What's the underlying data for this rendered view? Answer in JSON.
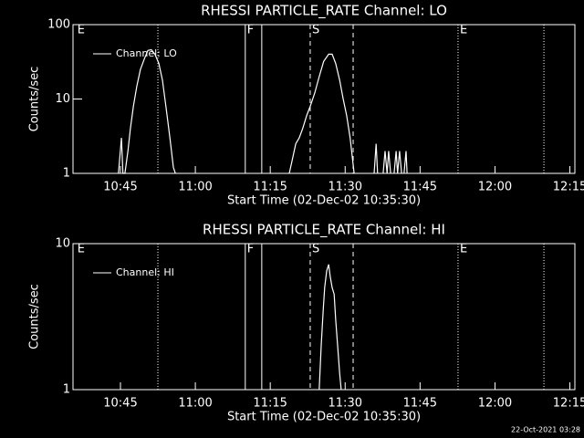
{
  "chart_data": [
    {
      "type": "line",
      "title": "RHESSI PARTICLE_RATE Channel: LO",
      "x_label": "Start Time (02-Dec-02 10:35:30)",
      "y_label": "Counts/sec",
      "log_y": true,
      "legend": "upper left",
      "xlim": [
        635.5,
        736
      ],
      "ylim": [
        1,
        100
      ],
      "yticks": [
        1,
        10,
        100
      ],
      "xticks": [
        {
          "value": 645,
          "label": "10:45"
        },
        {
          "value": 660,
          "label": "11:00"
        },
        {
          "value": 675,
          "label": "11:15"
        },
        {
          "value": 690,
          "label": "11:30"
        },
        {
          "value": 705,
          "label": "11:45"
        },
        {
          "value": 720,
          "label": "12:00"
        },
        {
          "value": 735,
          "label": "12:15"
        }
      ],
      "markers": [
        {
          "x": 636,
          "style": "none",
          "label": "E"
        },
        {
          "x": 652.5,
          "style": "dotted"
        },
        {
          "x": 670.0,
          "style": "solid",
          "label": "F"
        },
        {
          "x": 673.3,
          "style": "solid"
        },
        {
          "x": 683.0,
          "style": "dashed",
          "label": "S"
        },
        {
          "x": 691.6,
          "style": "dashed"
        },
        {
          "x": 712.6,
          "style": "dotted",
          "label": "E"
        },
        {
          "x": 729.8,
          "style": "dotted"
        }
      ],
      "series": [
        {
          "name": "Channel: LO",
          "color": "#ffffff",
          "x": [
            644.6,
            645.2,
            645.5,
            645.9,
            646.5,
            647.0,
            647.6,
            648.3,
            649.0,
            649.8,
            650.5,
            651.2,
            651.9,
            652.7,
            653.4,
            654.1,
            654.9,
            655.6,
            656.0,
            660,
            678.8,
            679.4,
            680.1,
            680.8,
            681.5,
            682.3,
            683.0,
            683.9,
            684.8,
            685.7,
            686.7,
            687.4,
            688.1,
            688.9,
            689.6,
            690.3,
            691.0,
            691.8,
            693,
            695.8,
            696.2,
            696.5,
            697,
            697.6,
            698.0,
            698.4,
            698.7,
            699.1,
            699.5,
            699.8,
            700.2,
            700.5,
            700.9,
            701.3,
            701.6,
            701.8,
            702.2,
            702.4
          ],
          "values": [
            1,
            3,
            1,
            1,
            2,
            4,
            8,
            15,
            25,
            35,
            45,
            46,
            40,
            30,
            18,
            8,
            3,
            1.2,
            1,
            null,
            1,
            1.5,
            2.5,
            3,
            4,
            6,
            8,
            12,
            20,
            32,
            40,
            40,
            30,
            18,
            10,
            6,
            3,
            1,
            null,
            1,
            2.5,
            1,
            null,
            1,
            2,
            1,
            2,
            1,
            null,
            1,
            2,
            1,
            2,
            1,
            null,
            1,
            2,
            1
          ]
        }
      ]
    },
    {
      "type": "line",
      "title": "RHESSI PARTICLE_RATE Channel: HI",
      "x_label": "Start Time (02-Dec-02 10:35:30)",
      "y_label": "Counts/sec",
      "log_y": true,
      "legend": "upper left",
      "xlim": [
        635.5,
        736
      ],
      "ylim": [
        1,
        10
      ],
      "yticks": [
        1,
        10
      ],
      "xticks": [
        {
          "value": 645,
          "label": "10:45"
        },
        {
          "value": 660,
          "label": "11:00"
        },
        {
          "value": 675,
          "label": "11:15"
        },
        {
          "value": 690,
          "label": "11:30"
        },
        {
          "value": 705,
          "label": "11:45"
        },
        {
          "value": 720,
          "label": "12:00"
        },
        {
          "value": 735,
          "label": "12:15"
        }
      ],
      "markers": [
        {
          "x": 636,
          "style": "none",
          "label": "E"
        },
        {
          "x": 652.5,
          "style": "dotted"
        },
        {
          "x": 670.0,
          "style": "solid",
          "label": "F"
        },
        {
          "x": 673.3,
          "style": "solid"
        },
        {
          "x": 683.0,
          "style": "dashed",
          "label": "S"
        },
        {
          "x": 691.6,
          "style": "dashed"
        },
        {
          "x": 712.6,
          "style": "dotted",
          "label": "E"
        },
        {
          "x": 729.8,
          "style": "dotted"
        }
      ],
      "series": [
        {
          "name": "Channel: HI",
          "color": "#ffffff",
          "x": [
            684.8,
            685.2,
            685.6,
            685.9,
            686.3,
            686.7,
            687.0,
            687.4,
            687.8,
            688.1,
            688.5,
            688.9,
            689.2
          ],
          "values": [
            1,
            2,
            3.5,
            5,
            6.5,
            7.2,
            6,
            5,
            4.5,
            3,
            2,
            1.3,
            1
          ]
        }
      ]
    }
  ],
  "footer": "22-Oct-2021 03:28"
}
